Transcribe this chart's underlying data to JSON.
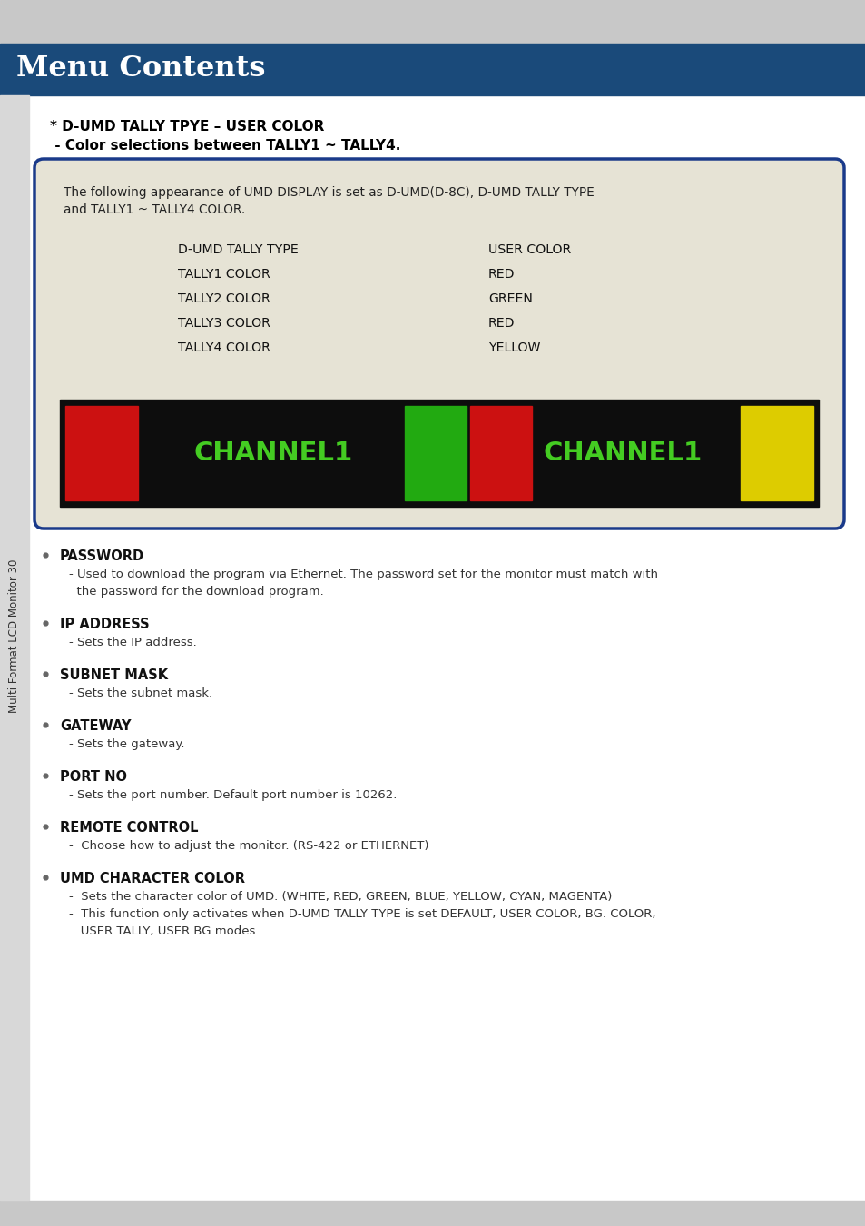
{
  "title": "Menu Contents",
  "title_bg": "#1a4a7a",
  "title_color": "#ffffff",
  "header_bg": "#c8c8c8",
  "page_bg": "#ffffff",
  "bottom_bg": "#c8c8c8",
  "sidebar_text": "Multi Format LCD Monitor 30",
  "sidebar_bg": "#d8d8d8",
  "bullet1_title": "* D-UMD TALLY TPYE – USER COLOR",
  "bullet1_sub": " - Color selections between TALLY1 ~ TALLY4.",
  "box_bg": "#e6e3d5",
  "box_border": "#1a3a8a",
  "box_text1": "The following appearance of UMD DISPLAY is set as D-UMD(D-8C), D-UMD TALLY TYPE",
  "box_text2": "and TALLY1 ~ TALLY4 COLOR.",
  "table_col1": [
    "D-UMD TALLY TYPE",
    "TALLY1 COLOR",
    "TALLY2 COLOR",
    "TALLY3 COLOR",
    "TALLY4 COLOR"
  ],
  "table_col2": [
    "USER COLOR",
    "RED",
    "GREEN",
    "RED",
    "YELLOW"
  ],
  "channel_bg": "#0d0d0d",
  "channel_text": "CHANNEL1",
  "channel_text_color": "#44cc22",
  "red_color": "#cc1111",
  "green_color": "#22aa11",
  "yellow_color": "#ddcc00",
  "bullet_items": [
    {
      "title": "PASSWORD",
      "lines": [
        "- Used to download the program via Ethernet. The password set for the monitor must match with",
        "  the password for the download program."
      ]
    },
    {
      "title": "IP ADDRESS",
      "lines": [
        "- Sets the IP address."
      ]
    },
    {
      "title": "SUBNET MASK",
      "lines": [
        "- Sets the subnet mask."
      ]
    },
    {
      "title": "GATEWAY",
      "lines": [
        "- Sets the gateway."
      ]
    },
    {
      "title": "PORT NO",
      "lines": [
        "- Sets the port number. Default port number is 10262."
      ]
    },
    {
      "title": "REMOTE CONTROL",
      "lines": [
        "-  Choose how to adjust the monitor. (RS-422 or ETHERNET)"
      ]
    },
    {
      "title": "UMD CHARACTER COLOR",
      "lines": [
        "-  Sets the character color of UMD. (WHITE, RED, GREEN, BLUE, YELLOW, CYAN, MAGENTA)",
        "-  This function only activates when D-UMD TALLY TYPE is set DEFAULT, USER COLOR, BG. COLOR,",
        "   USER TALLY, USER BG modes."
      ]
    }
  ]
}
